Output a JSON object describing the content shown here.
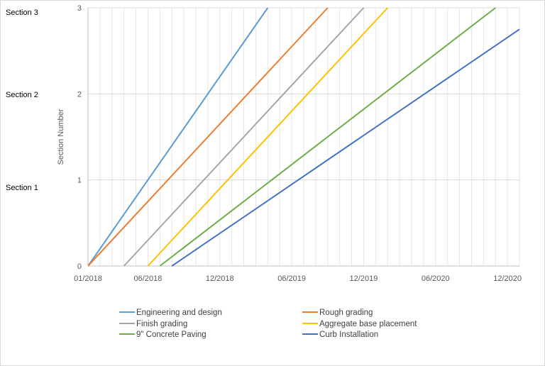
{
  "side_labels": [
    "Section 3",
    "Section 2",
    "Section 1"
  ],
  "chart_data": {
    "type": "line",
    "title": "",
    "xlabel": "",
    "ylabel": "Section Number",
    "x_tick_labels": [
      "01/2018",
      "06/2018",
      "12/2018",
      "06/2019",
      "12/2019",
      "06/2020",
      "12/2020"
    ],
    "y_tick_labels": [
      "0",
      "1",
      "2",
      "3"
    ],
    "ylim": [
      0,
      3
    ],
    "xlim": [
      "01/2018",
      "01/2021"
    ],
    "grid": {
      "horizontal": true,
      "vertical_monthly": true
    },
    "legend_position": "bottom",
    "series": [
      {
        "name": "Engineering and design",
        "color": "#5B9BD5",
        "points": [
          [
            "01/2018",
            0
          ],
          [
            "04/2019",
            3
          ]
        ]
      },
      {
        "name": "Rough grading",
        "color": "#ED7D31",
        "points": [
          [
            "01/2018",
            0
          ],
          [
            "09/2019",
            3
          ]
        ]
      },
      {
        "name": "Finish grading",
        "color": "#A5A5A5",
        "points": [
          [
            "04/2018",
            0
          ],
          [
            "12/2019",
            3
          ]
        ]
      },
      {
        "name": "Aggregate base placement",
        "color": "#FFC000",
        "points": [
          [
            "06/2018",
            0
          ],
          [
            "02/2020",
            3
          ]
        ]
      },
      {
        "name": "9\" Concrete Paving",
        "color": "#70AD47",
        "points": [
          [
            "07/2018",
            0
          ],
          [
            "11/2020",
            3
          ]
        ]
      },
      {
        "name": "Curb Installation",
        "color": "#4472C4",
        "points": [
          [
            "08/2018",
            0
          ],
          [
            "01/2021",
            2.75
          ]
        ]
      }
    ]
  }
}
